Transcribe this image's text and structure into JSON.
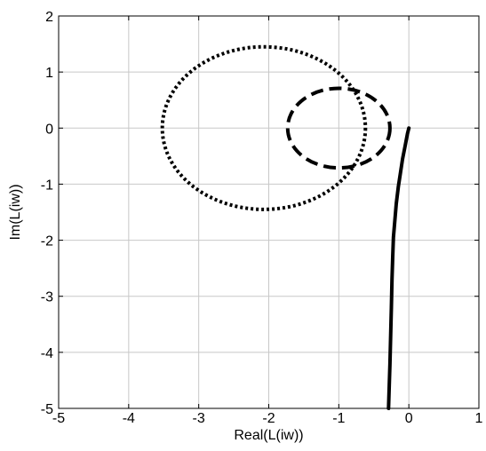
{
  "chart_data": {
    "type": "line",
    "title": "",
    "xlabel": "Real(L(iw))",
    "ylabel": "Im(L(iw))",
    "xlim": [
      -5,
      1
    ],
    "ylim": [
      -5,
      2
    ],
    "xticks": [
      -5,
      -4,
      -3,
      -2,
      -1,
      0,
      1
    ],
    "yticks": [
      -5,
      -4,
      -3,
      -2,
      -1,
      0,
      1,
      2
    ],
    "grid": true,
    "legend": "none",
    "series": [
      {
        "style": "solid",
        "color": "#000000",
        "points": [
          [
            0,
            0
          ],
          [
            -0.02,
            -0.1
          ],
          [
            -0.05,
            -0.3
          ],
          [
            -0.09,
            -0.55
          ],
          [
            -0.12,
            -0.8
          ],
          [
            -0.15,
            -1.05
          ],
          [
            -0.18,
            -1.35
          ],
          [
            -0.2,
            -1.65
          ],
          [
            -0.22,
            -1.95
          ],
          [
            -0.23,
            -2.3
          ],
          [
            -0.24,
            -2.7
          ],
          [
            -0.25,
            -3.2
          ],
          [
            -0.26,
            -3.7
          ],
          [
            -0.27,
            -4.2
          ],
          [
            -0.28,
            -4.6
          ],
          [
            -0.29,
            -5.0
          ]
        ]
      },
      {
        "style": "dashed",
        "color": "#000000",
        "shape": "ellipse",
        "center": [
          -1.0,
          0.0
        ],
        "radius_x": 0.73,
        "radius_y": 0.71
      },
      {
        "style": "dotted",
        "color": "#000000",
        "shape": "ellipse",
        "center": [
          -2.07,
          0.0
        ],
        "radius_x": 1.45,
        "radius_y": 1.45
      }
    ]
  }
}
